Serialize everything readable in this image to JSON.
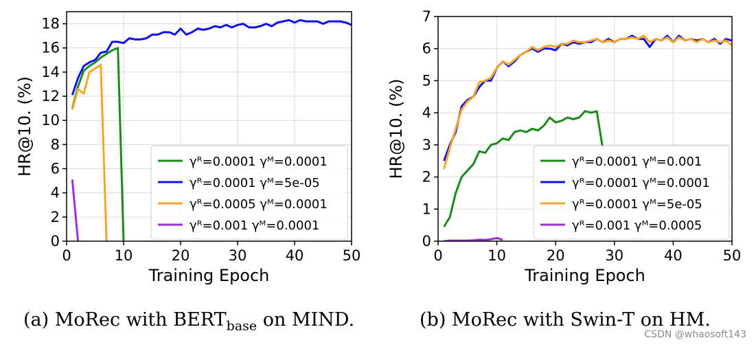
{
  "chart_data": [
    {
      "type": "line",
      "xlabel": "Training Epoch",
      "ylabel": "HR@10. (%)",
      "xlim": [
        0,
        50
      ],
      "ylim": [
        0,
        19
      ],
      "xticks": [
        0,
        10,
        20,
        30,
        40,
        50
      ],
      "yticks": [
        0,
        2,
        4,
        6,
        8,
        10,
        12,
        14,
        16,
        18
      ],
      "grid": true,
      "legend": "bottom-right",
      "series": [
        {
          "name": "γᴿ=0.0001 γᴹ=0.0001",
          "color": "#1a8a1a",
          "x": [
            1,
            2,
            3,
            4,
            5,
            6,
            7,
            8,
            9,
            10
          ],
          "y": [
            11,
            12.8,
            14.1,
            14.5,
            14.8,
            15.2,
            15.5,
            15.8,
            16,
            0
          ]
        },
        {
          "name": "γᴿ=0.0001 γᴹ=5e-05",
          "color": "#1010ee",
          "x": [
            1,
            2,
            3,
            4,
            5,
            6,
            7,
            8,
            9,
            10,
            11,
            12,
            13,
            14,
            15,
            16,
            17,
            18,
            19,
            20,
            21,
            22,
            23,
            24,
            25,
            26,
            27,
            28,
            29,
            30,
            31,
            32,
            33,
            34,
            35,
            36,
            37,
            38,
            39,
            40,
            41,
            42,
            43,
            44,
            45,
            46,
            47,
            48,
            49,
            50
          ],
          "y": [
            12.1,
            13.5,
            14.5,
            14.8,
            15,
            15.6,
            15.7,
            16.5,
            16.5,
            16.4,
            16.8,
            16.7,
            16.7,
            16.8,
            17.1,
            17.1,
            17.3,
            17.3,
            17.1,
            17.6,
            17.1,
            17.3,
            17.6,
            17.5,
            17.6,
            17.8,
            17.7,
            17.9,
            17.7,
            17.9,
            18,
            17.7,
            17.7,
            17.8,
            18,
            17.8,
            18.1,
            18.2,
            18.3,
            18.1,
            18.3,
            18.2,
            18.2,
            18.2,
            18,
            18.2,
            18.2,
            18.2,
            18.1,
            17.9
          ]
        },
        {
          "name": "γᴿ=0.0005 γᴹ=0.0001",
          "color": "#f5a623",
          "x": [
            1,
            2,
            3,
            4,
            5,
            6,
            7
          ],
          "y": [
            10.9,
            12.6,
            12.2,
            14,
            14.3,
            14.6,
            0
          ]
        },
        {
          "name": "γᴿ=0.001 γᴹ=0.0001",
          "color": "#9b30d8",
          "x": [
            1,
            2
          ],
          "y": [
            5.1,
            0
          ]
        }
      ]
    },
    {
      "type": "line",
      "xlabel": "Training Epoch",
      "ylabel": "HR@10. (%)",
      "xlim": [
        0,
        50
      ],
      "ylim": [
        0,
        7
      ],
      "xticks": [
        0,
        10,
        20,
        30,
        40,
        50
      ],
      "yticks": [
        0,
        1,
        2,
        3,
        4,
        5,
        6,
        7
      ],
      "grid": true,
      "legend": "bottom-right",
      "series": [
        {
          "name": "γᴿ=0.0001 γᴹ=0.001",
          "color": "#1a8a1a",
          "x": [
            1,
            2,
            3,
            4,
            5,
            6,
            7,
            8,
            9,
            10,
            11,
            12,
            13,
            14,
            15,
            16,
            17,
            18,
            19,
            20,
            21,
            22,
            23,
            24,
            25,
            26,
            27,
            28
          ],
          "y": [
            0.45,
            0.75,
            1.5,
            2,
            2.2,
            2.4,
            2.8,
            2.75,
            3,
            3.05,
            3.2,
            3.15,
            3.4,
            3.45,
            3.4,
            3.5,
            3.45,
            3.6,
            3.85,
            3.7,
            3.75,
            3.85,
            3.8,
            3.85,
            4.05,
            4,
            4.05,
            2.9
          ]
        },
        {
          "name": "γᴿ=0.0001 γᴹ=0.0001",
          "color": "#1010ee",
          "x": [
            1,
            2,
            3,
            4,
            5,
            6,
            7,
            8,
            9,
            10,
            11,
            12,
            13,
            14,
            15,
            16,
            17,
            18,
            19,
            20,
            21,
            22,
            23,
            24,
            25,
            26,
            27,
            28,
            29,
            30,
            31,
            32,
            33,
            34,
            35,
            36,
            37,
            38,
            39,
            40,
            41,
            42,
            43,
            44,
            45,
            46,
            47,
            48,
            49,
            50
          ],
          "y": [
            2.5,
            3,
            3.4,
            4.2,
            4.4,
            4.5,
            4.8,
            5,
            5,
            5.4,
            5.6,
            5.45,
            5.6,
            5.8,
            5.9,
            6,
            5.9,
            6,
            6,
            5.95,
            6.15,
            6.1,
            6.2,
            6.15,
            6.2,
            6.2,
            6.3,
            6.2,
            6.3,
            6.2,
            6.3,
            6.3,
            6.4,
            6.3,
            6.3,
            6.05,
            6.3,
            6.25,
            6.4,
            6.2,
            6.4,
            6.25,
            6.3,
            6.25,
            6.3,
            6.2,
            6.3,
            6.15,
            6.3,
            6.25
          ]
        },
        {
          "name": "γᴿ=0.0001 γᴹ=5e-05",
          "color": "#f5a623",
          "x": [
            1,
            2,
            3,
            4,
            5,
            6,
            7,
            8,
            9,
            10,
            11,
            12,
            13,
            14,
            15,
            16,
            17,
            18,
            19,
            20,
            21,
            22,
            23,
            24,
            25,
            26,
            27,
            28,
            29,
            30,
            31,
            32,
            33,
            34,
            35,
            36,
            37,
            38,
            39,
            40,
            41,
            42,
            43,
            44,
            45,
            46,
            47,
            48,
            49,
            50
          ],
          "y": [
            2.25,
            2.9,
            3.5,
            4.1,
            4.35,
            4.5,
            4.95,
            5,
            5.1,
            5.4,
            5.6,
            5.5,
            5.65,
            5.8,
            5.9,
            6.05,
            5.95,
            6.05,
            6.1,
            6.05,
            6.15,
            6.15,
            6.25,
            6.2,
            6.2,
            6.25,
            6.3,
            6.2,
            6.25,
            6.2,
            6.3,
            6.3,
            6.35,
            6.3,
            6.4,
            6.2,
            6.3,
            6.25,
            6.35,
            6.2,
            6.35,
            6.25,
            6.3,
            6.2,
            6.3,
            6.2,
            6.25,
            6.2,
            6.25,
            6.1
          ]
        },
        {
          "name": "γᴿ=0.001 γᴹ=0.0005",
          "color": "#9b30d8",
          "x": [
            1,
            2,
            3,
            4,
            5,
            6,
            7,
            8,
            9,
            10,
            11
          ],
          "y": [
            0,
            0.02,
            0.02,
            0.02,
            0.02,
            0.03,
            0.05,
            0.04,
            0.06,
            0.1,
            0.04
          ]
        }
      ]
    }
  ],
  "captions": {
    "a_prefix": "(a)  MoRec with BERT",
    "a_sub": "base",
    "a_suffix": " on MIND.",
    "b": "(b)  MoRec with Swin-T on HM."
  },
  "watermark": "CSDN @whaosoft143"
}
